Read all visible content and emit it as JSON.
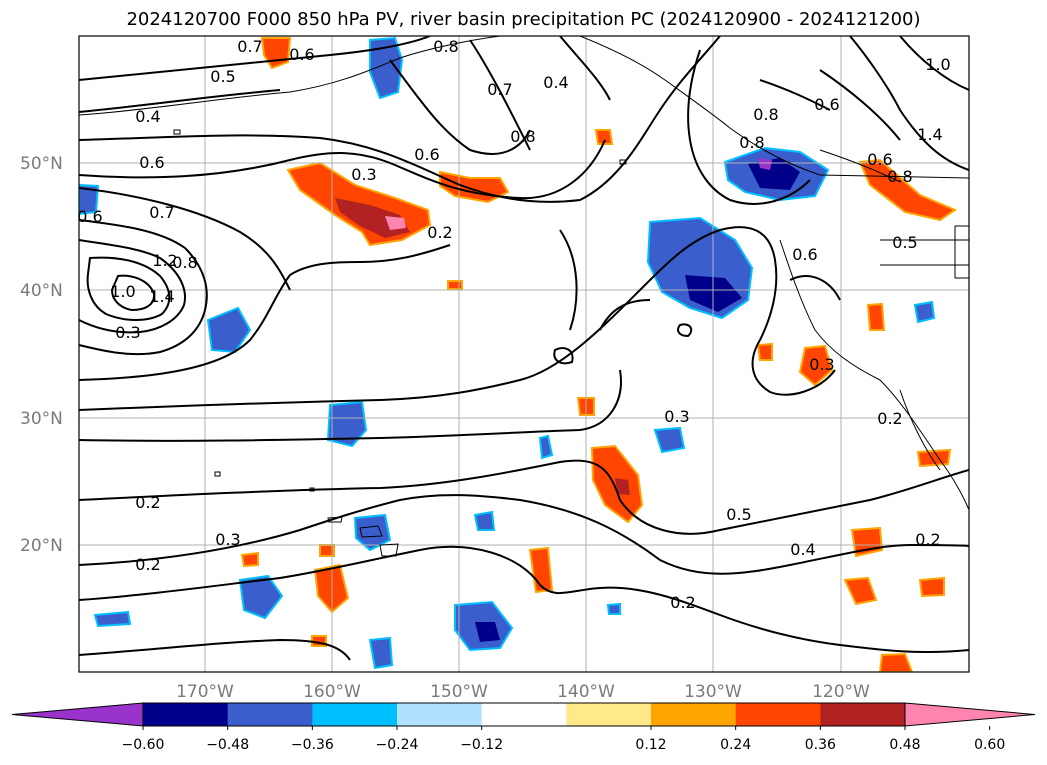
{
  "title": "2024120700 F000 850 hPa PV, river basin precipitation PC (2024120900 - 2024121200)",
  "latitude_labels": [
    "50°N",
    "40°N",
    "30°N",
    "20°N"
  ],
  "longitude_labels": [
    "170°W",
    "160°W",
    "150°W",
    "140°W",
    "130°W",
    "120°W"
  ],
  "colorbar": {
    "tick_labels": [
      "-0.60",
      "-0.48",
      "-0.36",
      "-0.24",
      "-0.12",
      "0.12",
      "0.24",
      "0.36",
      "0.48",
      "0.60"
    ],
    "colors": [
      "#9933cc",
      "#00008b",
      "#3a5fcd",
      "#00bfff",
      "#b0e2ff",
      "#ffffff",
      "#ffe98a",
      "#ffa500",
      "#ff4500",
      "#b22222",
      "#ff85b0"
    ]
  },
  "contour_labels": [
    "0.7",
    "0.6",
    "0.5",
    "0.8",
    "0.4",
    "0.7",
    "0.8",
    "0.4",
    "0.6",
    "0.6",
    "0.3",
    "0.2",
    "0.6",
    "0.7",
    "1.2",
    "0.8",
    "1.0",
    "1.4",
    "0.3",
    "0.6",
    "0.8",
    "0.8",
    "1.0",
    "1.4",
    "0.6",
    "0.8",
    "0.5",
    "0.6",
    "0.3",
    "0.3",
    "0.2",
    "0.2",
    "0.3",
    "0.2",
    "0.5",
    "0.4",
    "0.2",
    "0.2"
  ]
}
